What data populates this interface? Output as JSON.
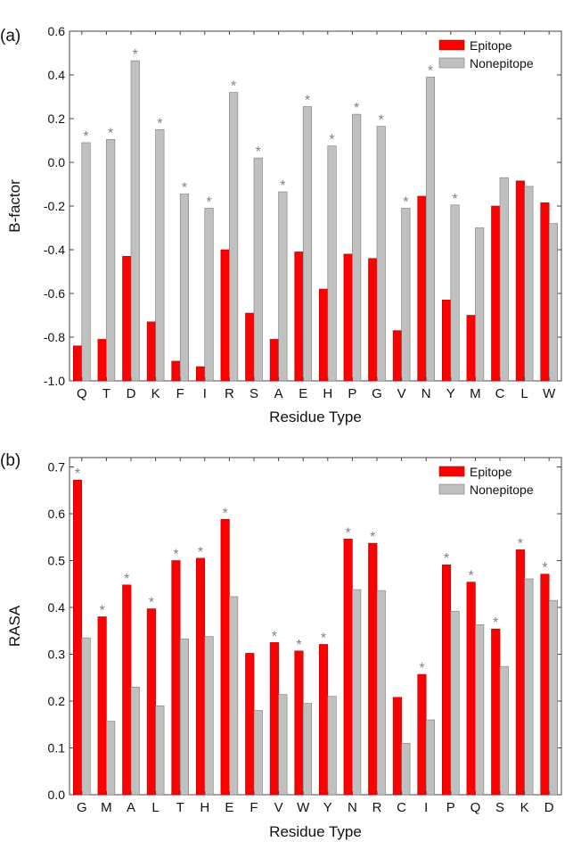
{
  "colors": {
    "epitope": "#ff0000",
    "nonepitope": "#c0c0c0",
    "asterisk": "#808080",
    "axis": "#444444"
  },
  "chart_data": [
    {
      "type": "bar",
      "panel_label": "(a)",
      "xlabel": "Residue Type",
      "ylabel": "B-factor",
      "ylim": [
        -1.0,
        0.6
      ],
      "yticks": [
        "-1.0",
        "-0.8",
        "-0.6",
        "-0.4",
        "-0.2",
        "0.0",
        "0.2",
        "0.4",
        "0.6"
      ],
      "legend_position": "top-right",
      "categories": [
        "Q",
        "T",
        "D",
        "K",
        "F",
        "I",
        "R",
        "S",
        "A",
        "E",
        "H",
        "P",
        "G",
        "V",
        "N",
        "Y",
        "M",
        "C",
        "L",
        "W"
      ],
      "series": [
        {
          "name": "Epitope",
          "values": [
            -0.84,
            -0.81,
            -0.43,
            -0.73,
            -0.91,
            -0.935,
            -0.4,
            -0.69,
            -0.81,
            -0.41,
            -0.58,
            -0.42,
            -0.44,
            -0.77,
            -0.155,
            -0.63,
            -0.7,
            -0.2,
            -0.085,
            -0.185
          ]
        },
        {
          "name": "Nonepitope",
          "values": [
            0.09,
            0.105,
            0.465,
            0.15,
            -0.145,
            -0.21,
            0.32,
            0.02,
            -0.135,
            0.255,
            0.075,
            0.22,
            0.165,
            -0.21,
            0.39,
            -0.195,
            -0.3,
            -0.07,
            -0.11,
            -0.28
          ]
        }
      ],
      "asterisk_mark": "*",
      "asterisks": [
        true,
        true,
        true,
        true,
        true,
        true,
        true,
        true,
        true,
        true,
        true,
        true,
        true,
        true,
        true,
        true,
        false,
        false,
        false,
        false
      ],
      "asterisk_on_series": "Nonepitope"
    },
    {
      "type": "bar",
      "panel_label": "(b)",
      "xlabel": "Residue Type",
      "ylabel": "RASA",
      "ylim": [
        0.0,
        0.72
      ],
      "yticks": [
        "0.0",
        "0.1",
        "0.2",
        "0.3",
        "0.4",
        "0.5",
        "0.6",
        "0.7"
      ],
      "legend_position": "top-right",
      "categories": [
        "G",
        "M",
        "A",
        "L",
        "T",
        "H",
        "E",
        "F",
        "V",
        "W",
        "Y",
        "N",
        "R",
        "C",
        "I",
        "P",
        "Q",
        "S",
        "K",
        "D"
      ],
      "series": [
        {
          "name": "Epitope",
          "values": [
            0.672,
            0.38,
            0.448,
            0.397,
            0.5,
            0.505,
            0.588,
            0.302,
            0.325,
            0.307,
            0.321,
            0.546,
            0.537,
            0.208,
            0.257,
            0.491,
            0.454,
            0.354,
            0.523,
            0.471
          ]
        },
        {
          "name": "Nonepitope",
          "values": [
            0.335,
            0.157,
            0.23,
            0.19,
            0.333,
            0.338,
            0.423,
            0.18,
            0.214,
            0.195,
            0.21,
            0.438,
            0.436,
            0.11,
            0.16,
            0.392,
            0.363,
            0.274,
            0.461,
            0.415
          ]
        }
      ],
      "asterisk_mark": "*",
      "asterisks": [
        true,
        true,
        true,
        true,
        true,
        true,
        true,
        false,
        true,
        true,
        true,
        true,
        true,
        false,
        true,
        true,
        true,
        true,
        true,
        true
      ],
      "asterisk_on_series": "Epitope"
    }
  ]
}
